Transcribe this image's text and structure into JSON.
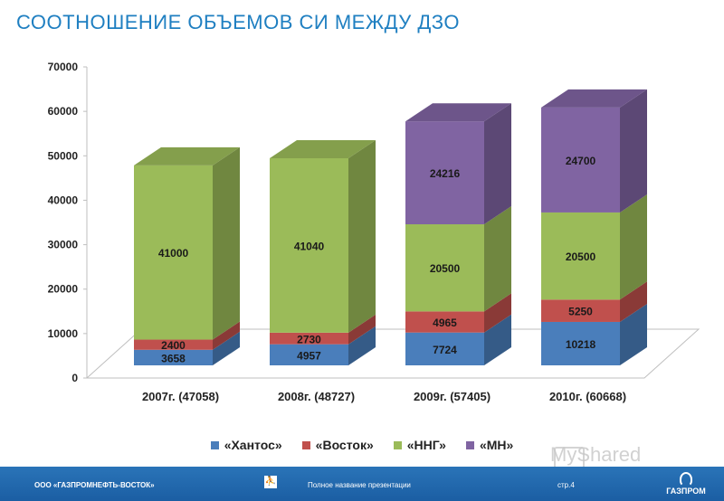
{
  "slide": {
    "title": "СООТНОШЕНИЕ ОБЪЕМОВ СИ МЕЖДУ ДЗО"
  },
  "chart_data": {
    "type": "bar",
    "stacked": true,
    "three_d": true,
    "categories": [
      "2007г. (47058)",
      "2008г. (48727)",
      "2009г. (57405)",
      "2010г. (60668)"
    ],
    "series": [
      {
        "name": "«Хантос»",
        "values": [
          3658,
          4957,
          7724,
          10218
        ],
        "color": "#4a7ebb",
        "label_color": "#1a1a1a"
      },
      {
        "name": "«Восток»",
        "values": [
          2400,
          2730,
          4965,
          5250
        ],
        "color": "#c0504d",
        "label_color": "#1a1a1a"
      },
      {
        "name": "«ННГ»",
        "values": [
          41000,
          41040,
          20500,
          20500
        ],
        "color": "#9bbb59",
        "label_color": "#1a1a1a"
      },
      {
        "name": "«МН»",
        "values": [
          null,
          null,
          24216,
          24700
        ],
        "color": "#8064a2",
        "label_color": "#1a1a1a"
      }
    ],
    "ylim": [
      0,
      70000
    ],
    "yticks": [
      "0",
      "10000",
      "20000",
      "30000",
      "40000",
      "50000",
      "60000",
      "70000"
    ],
    "grid": false,
    "legend": "bottom"
  },
  "footer": {
    "company": "ООО «ГАЗПРОМНЕФТЬ-ВОСТОК»",
    "presentation": "Полное название презентации",
    "page": "стр.4",
    "brand": "ГАЗПРОМ"
  },
  "watermark": {
    "text": "MyShared"
  }
}
